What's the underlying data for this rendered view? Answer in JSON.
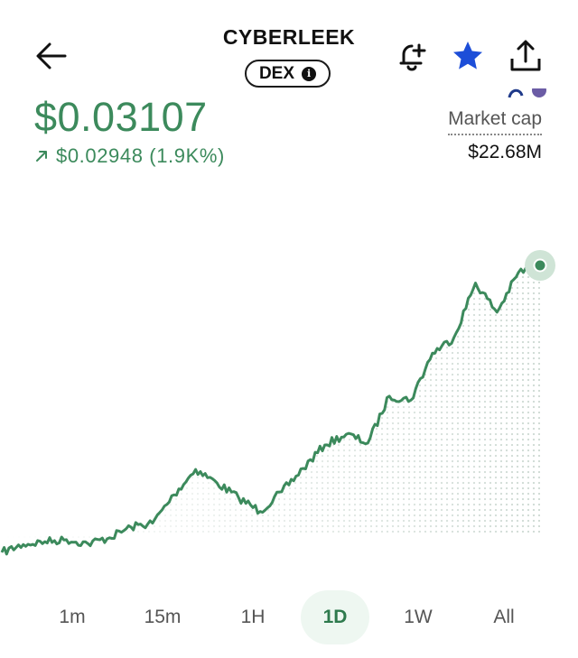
{
  "header": {
    "title": "CYBERLEEK",
    "badge": "DEX"
  },
  "price": {
    "current": "$0.03107",
    "change": "$0.02948 (1.9K%)"
  },
  "market_cap": {
    "label": "Market cap",
    "value": "$22.68M"
  },
  "colors": {
    "accent_green": "#3c8a5c",
    "star_blue": "#1d4ed8"
  },
  "timeframes": [
    {
      "label": "1m",
      "active": false
    },
    {
      "label": "15m",
      "active": false
    },
    {
      "label": "1H",
      "active": false
    },
    {
      "label": "1D",
      "active": true
    },
    {
      "label": "1W",
      "active": false
    },
    {
      "label": "All",
      "active": false
    }
  ],
  "chart_data": {
    "type": "line",
    "title": "",
    "xlabel": "",
    "ylabel": "",
    "grid": false,
    "y_trace": [
      0.0016,
      0.0024,
      0.0027,
      0.0029,
      0.0025,
      0.0031,
      0.0042,
      0.0046,
      0.0075,
      0.0101,
      0.0087,
      0.0072,
      0.0058,
      0.0078,
      0.0102,
      0.0126,
      0.0137,
      0.0128,
      0.0176,
      0.0172,
      0.022,
      0.0236,
      0.0292,
      0.0262,
      0.0303,
      0.031
    ],
    "last_value": 0.03107
  }
}
